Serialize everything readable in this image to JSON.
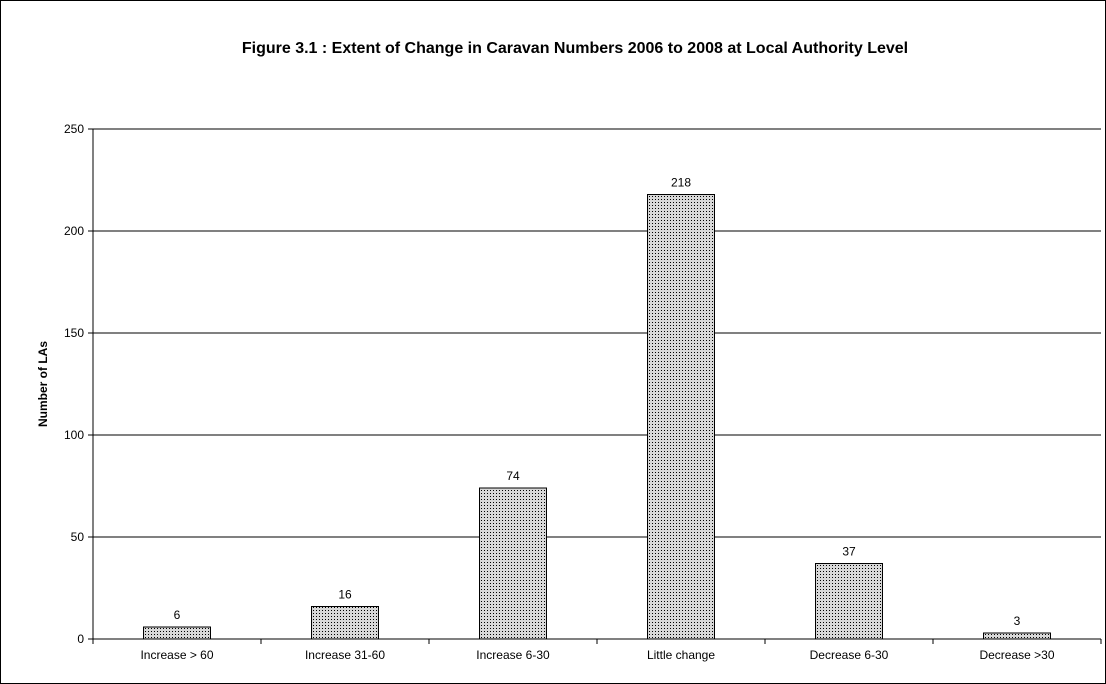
{
  "chart_data": {
    "type": "bar",
    "title": "Figure 3.1 : Extent of Change in Caravan Numbers 2006 to 2008 at Local Authority Level",
    "xlabel": "",
    "ylabel": "Number of LAs",
    "categories": [
      "Increase > 60",
      "Increase 31-60",
      "Increase 6-30",
      "Little change",
      "Decrease 6-30",
      "Decrease >30"
    ],
    "values": [
      6,
      16,
      74,
      218,
      37,
      3
    ],
    "data_labels": [
      "6",
      "16",
      "74",
      "218",
      "37",
      "3"
    ],
    "ylim": [
      0,
      250
    ],
    "yticks": [
      0,
      50,
      100,
      150,
      200,
      250
    ],
    "grid": "horizontal",
    "legend": "none",
    "colors": {
      "bar_fill": "#d8d8d8",
      "bar_pattern_dot": "#000000",
      "bar_border": "#000000",
      "gridline": "#000000",
      "background": "#ffffff"
    }
  }
}
